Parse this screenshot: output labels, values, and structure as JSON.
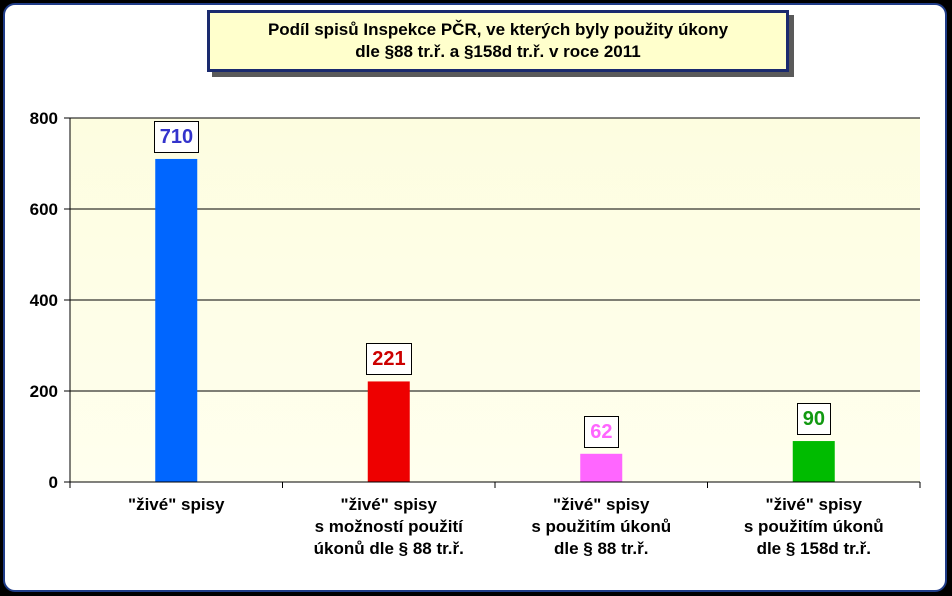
{
  "chart_data": {
    "type": "bar",
    "title_line1": "Podíl spisů Inspekce PČR, ve kterých byly použity úkony",
    "title_line2": "dle §88 tr.ř. a §158d tr.ř. v roce 2011",
    "categories": [
      [
        "\"živé\" spisy"
      ],
      [
        "\"živé\" spisy",
        "s možností použití",
        "úkonů dle § 88 tr.ř."
      ],
      [
        "\"živé\" spisy",
        "s použitím úkonů",
        "dle § 88 tr.ř."
      ],
      [
        "\"živé\" spisy",
        "s použitím úkonů",
        "dle § 158d tr.ř."
      ]
    ],
    "values": [
      710,
      221,
      62,
      90
    ],
    "value_labels": [
      "710",
      "221",
      "62",
      "90"
    ],
    "colors": [
      "#0066ff",
      "#ee0000",
      "#ff66ff",
      "#00bb00"
    ],
    "label_colors": [
      "#3333cc",
      "#cc0000",
      "#ff66ff",
      "#119911"
    ],
    "ylim": [
      0,
      800
    ],
    "yticks": [
      0,
      200,
      400,
      600,
      800
    ],
    "ytick_labels": [
      "0",
      "200",
      "400",
      "600",
      "800"
    ],
    "grid": true,
    "plot_bg_top": "#fdfde0",
    "plot_bg_bottom": "#ffffee"
  }
}
